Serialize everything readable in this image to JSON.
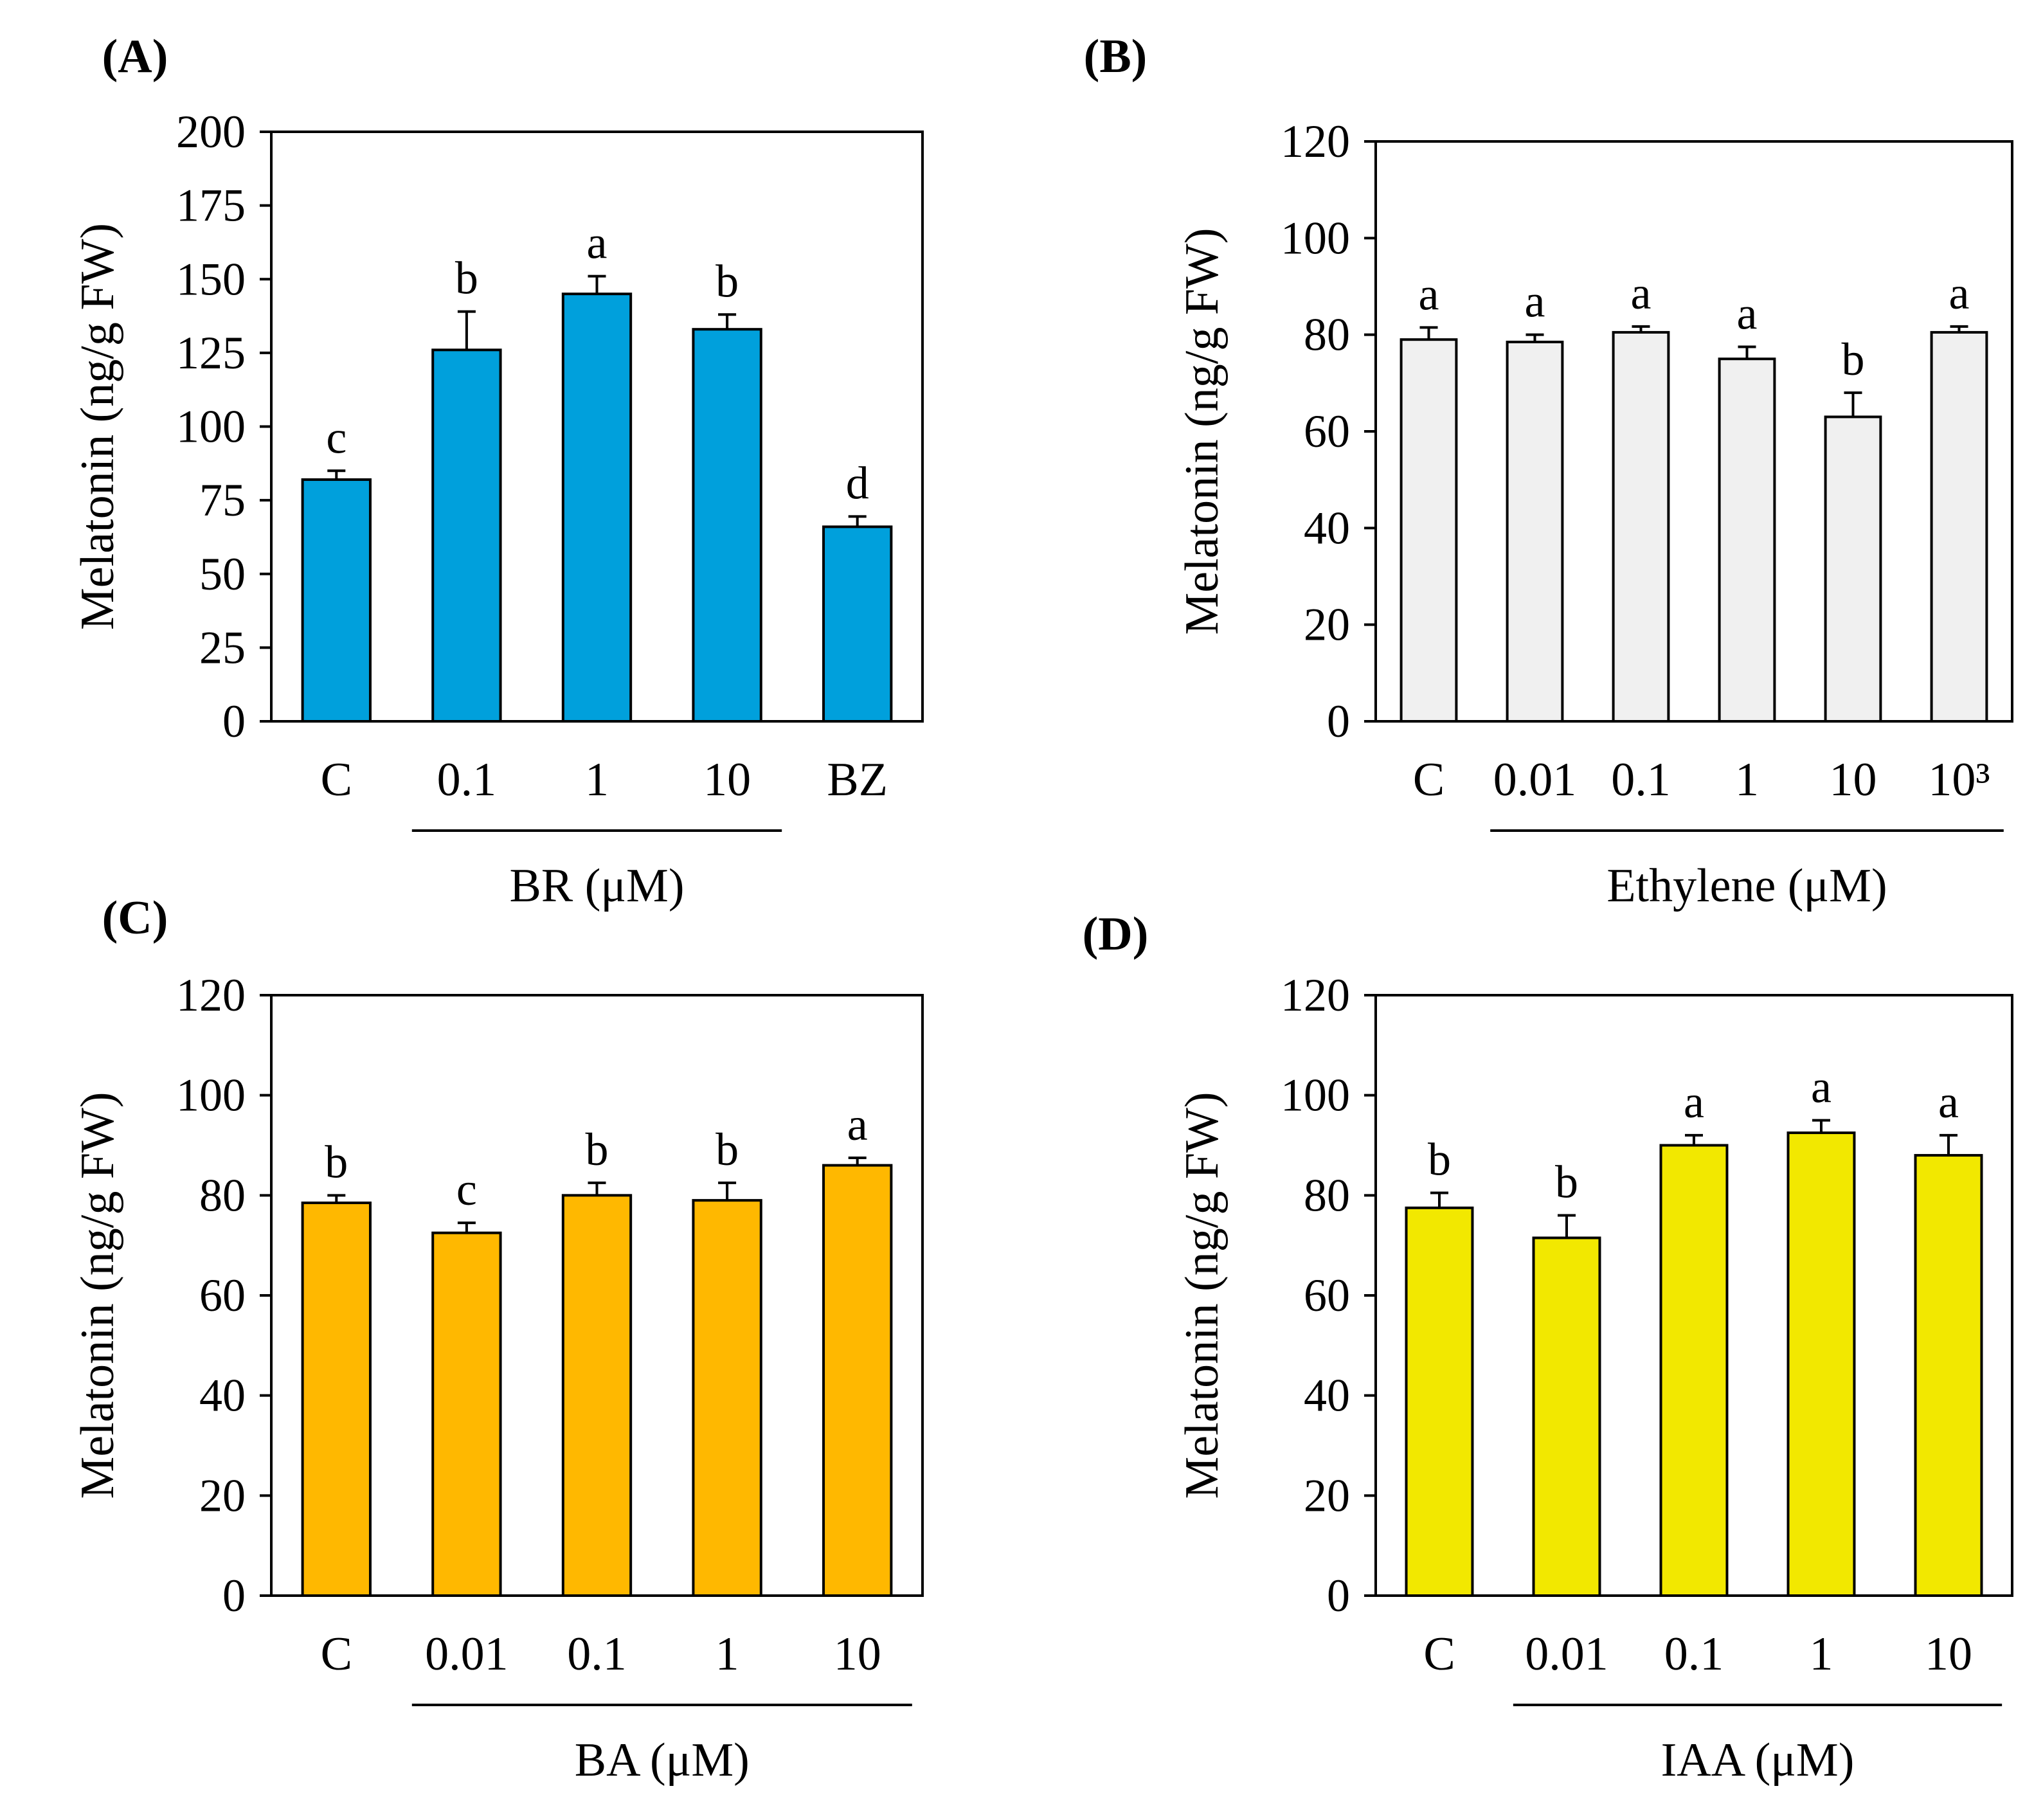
{
  "chart_data": [
    {
      "panel_label": "(A)",
      "type": "bar",
      "categories": [
        "C",
        "0.1",
        "1",
        "10",
        "BZ"
      ],
      "values": [
        82,
        126,
        145,
        133,
        66
      ],
      "errors": [
        3,
        13,
        6,
        5,
        3.5
      ],
      "significance": [
        "c",
        "b",
        "a",
        "b",
        "d"
      ],
      "ylabel": "Melatonin (ng/g FW)",
      "xlabel": "BR (μM)",
      "group_span": [
        1,
        3
      ],
      "yticks": [
        "0",
        "25",
        "50",
        "75",
        "100",
        "125",
        "150",
        "175",
        "200"
      ],
      "ylim": [
        0,
        200
      ],
      "bar_color": "#00A0DC"
    },
    {
      "panel_label": "(B)",
      "type": "bar",
      "categories": [
        "C",
        "0.01",
        "0.1",
        "1",
        "10",
        "10³"
      ],
      "values": [
        79,
        78.5,
        80.5,
        75,
        63,
        80.5
      ],
      "errors": [
        2.5,
        1.5,
        1.2,
        2.5,
        5,
        1.2
      ],
      "significance": [
        "a",
        "a",
        "a",
        "a",
        "b",
        "a"
      ],
      "ylabel": "Melatonin (ng/g FW)",
      "xlabel": "Ethylene (μM)",
      "group_span": [
        1,
        5
      ],
      "yticks": [
        "0",
        "20",
        "40",
        "60",
        "80",
        "100",
        "120"
      ],
      "ylim": [
        0,
        120
      ],
      "bar_color": "#F0F0F0"
    },
    {
      "panel_label": "(C)",
      "type": "bar",
      "categories": [
        "C",
        "0.01",
        "0.1",
        "1",
        "10"
      ],
      "values": [
        78.5,
        72.5,
        80,
        79,
        86
      ],
      "errors": [
        1.5,
        2,
        2.5,
        3.5,
        1.5
      ],
      "significance": [
        "b",
        "c",
        "b",
        "b",
        "a"
      ],
      "ylabel": "Melatonin (ng/g FW)",
      "xlabel": "BA (μM)",
      "group_span": [
        1,
        4
      ],
      "yticks": [
        "0",
        "20",
        "40",
        "60",
        "80",
        "100",
        "120"
      ],
      "ylim": [
        0,
        120
      ],
      "bar_color": "#FFB800"
    },
    {
      "panel_label": "(D)",
      "type": "bar",
      "categories": [
        "C",
        "0.01",
        "0.1",
        "1",
        "10"
      ],
      "values": [
        77.5,
        71.5,
        90,
        92.5,
        88
      ],
      "errors": [
        3,
        4.5,
        2,
        2.5,
        4
      ],
      "significance": [
        "b",
        "b",
        "a",
        "a",
        "a"
      ],
      "ylabel": "Melatonin (ng/g FW)",
      "xlabel": "IAA (μM)",
      "group_span": [
        1,
        4
      ],
      "yticks": [
        "0",
        "20",
        "40",
        "60",
        "80",
        "100",
        "120"
      ],
      "ylim": [
        0,
        120
      ],
      "bar_color": "#F2E800"
    }
  ]
}
